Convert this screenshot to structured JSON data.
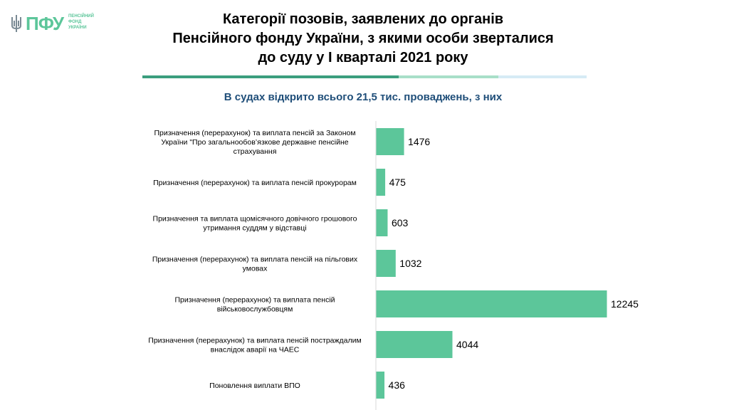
{
  "logo": {
    "text": "ПФУ",
    "subtitle_lines": [
      "ПЕНСІЙНИЙ",
      "ФОНД",
      "УКРАЇНИ"
    ]
  },
  "title_lines": [
    "Категорії позовів, заявлених до органів",
    "Пенсійного фонду України, з якими особи зверталися",
    "до суду у І кварталі  2021 року"
  ],
  "subtitle": "В судах відкрито всього 21,5 тис. проваджень, з них",
  "colors": {
    "bar": "#5cc69a",
    "rule_dark": "#3b9e7e",
    "rule_mid": "#a8dfc8",
    "rule_light": "#d6ebf5",
    "subtitle": "#1f4e79"
  },
  "chart_data": {
    "type": "bar",
    "orientation": "horizontal",
    "categories": [
      [
        "Призначення (перерахунок) та виплата пенсій за Законом",
        "України \"Про загальнообов’язкове державне пенсійне",
        "страхування"
      ],
      [
        "Призначення (перерахунок) та виплата пенсій прокурорам"
      ],
      [
        "Призначення та виплата щомісячного довічного грошового",
        "утримання суддям у відставці"
      ],
      [
        "Призначення (перерахунок) та виплата пенсій на пільгових",
        "умовах"
      ],
      [
        "Призначення (перерахунок) та виплата пенсій",
        "військовослужбовцям"
      ],
      [
        "Призначення (перерахунок) та виплата пенсій постраждалим",
        "внаслідок аварії на ЧАЕС"
      ],
      [
        "Поновлення виплати ВПО"
      ]
    ],
    "values": [
      1476,
      475,
      603,
      1032,
      12245,
      4044,
      436
    ],
    "xlim": [
      0,
      12245
    ],
    "grid": false,
    "legend": "none"
  }
}
